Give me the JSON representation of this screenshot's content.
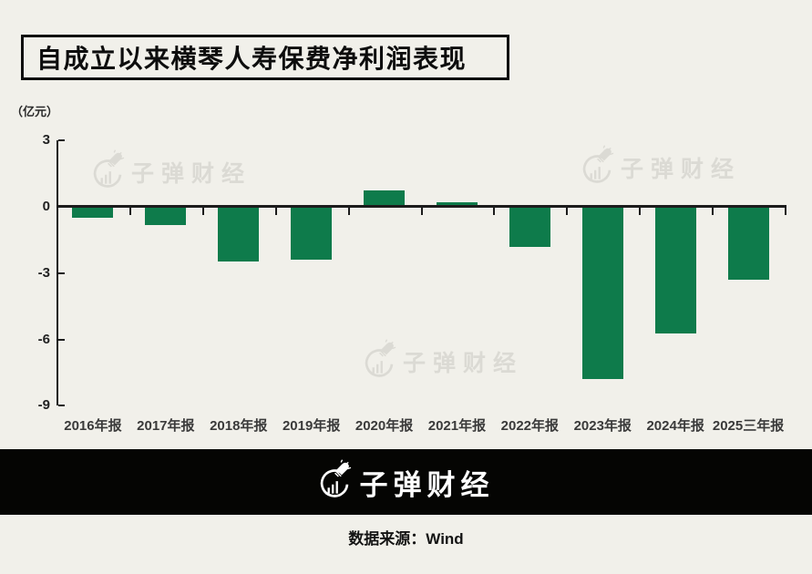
{
  "title": "自成立以来横琴人寿保费净利润表现",
  "unit_label": "（亿元）",
  "watermark": {
    "brand": "子弹财经"
  },
  "banner": {
    "brand": "子弹财经"
  },
  "footer": {
    "source": "数据来源：Wind"
  },
  "chart_data": {
    "type": "bar",
    "title": "自成立以来横琴人寿保费净利润表现",
    "ylabel": "（亿元）",
    "categories": [
      "2016年报",
      "2017年报",
      "2018年报",
      "2019年报",
      "2020年报",
      "2021年报",
      "2022年报",
      "2023年报",
      "2024年报",
      "2025三年报"
    ],
    "values": [
      -0.45,
      -0.8,
      -2.42,
      -2.37,
      0.65,
      0.12,
      -1.78,
      -7.75,
      -5.68,
      -3.26
    ],
    "yticks": [
      3,
      0,
      -3,
      -6,
      -9
    ],
    "ylim": [
      -9,
      3
    ],
    "bar_color": "#0e7b4b",
    "axis_color": "#1c1c1c",
    "background_color": "#f1f0ea",
    "grid": false,
    "legend_position": "none"
  }
}
